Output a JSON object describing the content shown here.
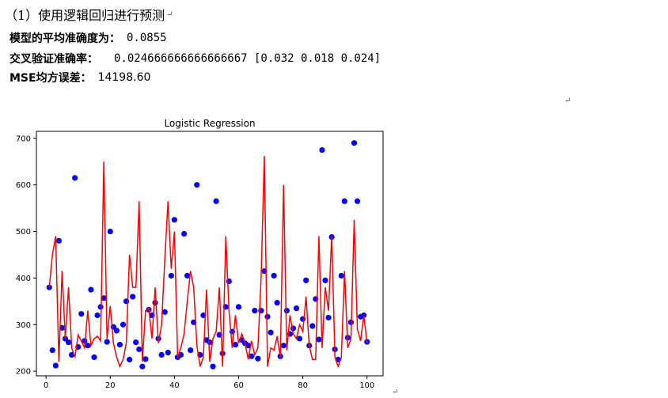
{
  "heading": "（1）使用逻辑回归进行预测",
  "output_lines": {
    "accuracy_label": "模型的平均准确度为：",
    "accuracy_value": "0.0855",
    "cv_label": "交叉验证准确率：",
    "cv_value": "0.024666666666666667 [0.032 0.018 0.024]",
    "mse_label": "MSE均方误差：",
    "mse_value": "14198.60"
  },
  "return_mark": "↵",
  "chart_data": {
    "type": "scatter",
    "title": "Logistic Regression",
    "xlabel": "",
    "ylabel": "",
    "xlim": [
      -3,
      105
    ],
    "ylim": [
      190,
      715
    ],
    "xticks": [
      0,
      20,
      40,
      60,
      80,
      100
    ],
    "yticks": [
      200,
      300,
      400,
      500,
      600,
      700
    ],
    "grid": false,
    "legend": "none",
    "series": [
      {
        "kind": "scatter",
        "color": "#0000ff",
        "x": [
          1,
          2,
          3,
          4,
          5,
          6,
          7,
          8,
          9,
          10,
          11,
          12,
          13,
          14,
          15,
          16,
          17,
          18,
          19,
          20,
          21,
          22,
          23,
          24,
          25,
          26,
          27,
          28,
          29,
          30,
          31,
          32,
          33,
          34,
          35,
          36,
          37,
          38,
          39,
          40,
          41,
          42,
          43,
          44,
          45,
          46,
          47,
          48,
          49,
          50,
          51,
          52,
          53,
          54,
          55,
          56,
          57,
          58,
          59,
          60,
          61,
          62,
          63,
          64,
          65,
          66,
          67,
          68,
          69,
          70,
          71,
          72,
          73,
          74,
          75,
          76,
          77,
          78,
          79,
          80,
          81,
          82,
          83,
          84,
          85,
          86,
          87,
          88,
          89,
          90,
          91,
          92,
          93,
          94,
          95,
          96,
          97,
          98,
          99,
          100
        ],
        "y": [
          380,
          245,
          212,
          480,
          293,
          270,
          262,
          235,
          615,
          252,
          323,
          265,
          255,
          375,
          230,
          320,
          338,
          357,
          263,
          500,
          295,
          287,
          257,
          300,
          350,
          225,
          360,
          262,
          247,
          210,
          226,
          332,
          320,
          347,
          270,
          235,
          327,
          240,
          405,
          525,
          230,
          235,
          495,
          405,
          245,
          305,
          600,
          235,
          320,
          267,
          262,
          210,
          565,
          278,
          238,
          338,
          393,
          285,
          257,
          338,
          267,
          260,
          255,
          232,
          330,
          227,
          330,
          415,
          317,
          283,
          405,
          347,
          232,
          255,
          330,
          280,
          292,
          335,
          270,
          312,
          395,
          255,
          297,
          355,
          268,
          675,
          395,
          315,
          488,
          247,
          225,
          405,
          565,
          272,
          305,
          690,
          565,
          317,
          320,
          263
        ]
      },
      {
        "kind": "line",
        "color": "#ff0000",
        "x": [
          1,
          2,
          3,
          4,
          5,
          6,
          7,
          8,
          9,
          10,
          11,
          12,
          13,
          14,
          15,
          16,
          17,
          18,
          19,
          20,
          21,
          22,
          23,
          24,
          25,
          26,
          27,
          28,
          29,
          30,
          31,
          32,
          33,
          34,
          35,
          36,
          37,
          38,
          39,
          40,
          41,
          42,
          43,
          44,
          45,
          46,
          47,
          48,
          49,
          50,
          51,
          52,
          53,
          54,
          55,
          56,
          57,
          58,
          59,
          60,
          61,
          62,
          63,
          64,
          65,
          66,
          67,
          68,
          69,
          70,
          71,
          72,
          73,
          74,
          75,
          76,
          77,
          78,
          79,
          80,
          81,
          82,
          83,
          84,
          85,
          86,
          87,
          88,
          89,
          90,
          91,
          92,
          93,
          94,
          95,
          96,
          97,
          98,
          99,
          100
        ],
        "y": [
          380,
          450,
          490,
          220,
          415,
          270,
          380,
          250,
          230,
          278,
          265,
          250,
          330,
          255,
          270,
          275,
          265,
          650,
          270,
          340,
          260,
          230,
          210,
          225,
          260,
          450,
          380,
          380,
          565,
          220,
          330,
          335,
          270,
          380,
          260,
          300,
          440,
          565,
          420,
          500,
          230,
          250,
          280,
          350,
          415,
          380,
          255,
          210,
          230,
          375,
          220,
          270,
          285,
          380,
          210,
          490,
          330,
          250,
          320,
          260,
          280,
          260,
          225,
          265,
          235,
          250,
          400,
          662,
          210,
          250,
          245,
          275,
          230,
          600,
          245,
          320,
          280,
          270,
          300,
          285,
          360,
          255,
          225,
          225,
          490,
          250,
          380,
          330,
          490,
          230,
          210,
          230,
          415,
          250,
          270,
          525,
          290,
          265,
          320,
          260
        ]
      }
    ]
  }
}
